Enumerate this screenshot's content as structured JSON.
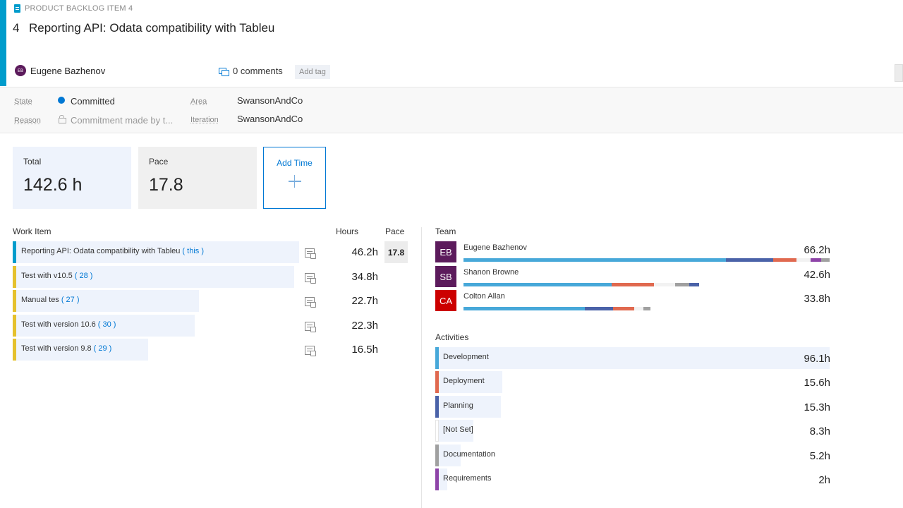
{
  "header": {
    "type_label": "PRODUCT BACKLOG ITEM 4",
    "id": "4",
    "title": "Reporting API: Odata compatibility with Tableu",
    "owner_initials": "EB",
    "owner": "Eugene Bazhenov",
    "comments": "0 comments",
    "add_tag": "Add tag",
    "accent_color": "#009ccc"
  },
  "fields": {
    "state_label": "State",
    "state_value": "Committed",
    "state_color": "#0078d4",
    "reason_label": "Reason",
    "reason_value": "Commitment made by t...",
    "area_label": "Area",
    "area_value": "SwansonAndCo",
    "iteration_label": "Iteration",
    "iteration_value": "SwansonAndCo"
  },
  "tiles": {
    "total_label": "Total",
    "total_value": "142.6 h",
    "pace_label": "Pace",
    "pace_value": "17.8",
    "add_time_label": "Add Time"
  },
  "work_items": {
    "col_item": "Work Item",
    "col_hours": "Hours",
    "col_pace": "Pace",
    "pace_value": "17.8",
    "rows": [
      {
        "title": "Reporting API: Odata compatibility with Tableu",
        "id": "( this )",
        "hours": "46.2h",
        "color": "#009ccc"
      },
      {
        "title": "Test with v10.5",
        "id": "( 28 )",
        "hours": "34.8h",
        "color": "#e5c12d"
      },
      {
        "title": "Manual tes",
        "id": "( 27 )",
        "hours": "22.7h",
        "color": "#e5c12d"
      },
      {
        "title": "Test with version 10.6",
        "id": "( 30 )",
        "hours": "22.3h",
        "color": "#e5c12d"
      },
      {
        "title": "Test with version 9.8",
        "id": "( 29 )",
        "hours": "16.5h",
        "color": "#e5c12d"
      }
    ]
  },
  "team": {
    "label": "Team",
    "members": [
      {
        "initials": "EB",
        "name": "Eugene Bazhenov",
        "hours": "66.2h",
        "color": "#5c1b5c"
      },
      {
        "initials": "SB",
        "name": "Shanon Browne",
        "hours": "42.6h",
        "color": "#5c1b5c"
      },
      {
        "initials": "CA",
        "name": "Colton Allan",
        "hours": "33.8h",
        "color": "#cc0000"
      }
    ]
  },
  "activities": {
    "label": "Activities",
    "items": [
      {
        "name": "Development",
        "hours": "96.1h",
        "color": "#47a8d9"
      },
      {
        "name": "Deployment",
        "hours": "15.6h",
        "color": "#e0694f"
      },
      {
        "name": "Planning",
        "hours": "15.3h",
        "color": "#4a62a8"
      },
      {
        "name": "[Not Set]",
        "hours": "8.3h",
        "color": "#ffffff"
      },
      {
        "name": "Documentation",
        "hours": "5.2h",
        "color": "#a0a0a0"
      },
      {
        "name": "Requirements",
        "hours": "2h",
        "color": "#8e44a8"
      }
    ]
  }
}
